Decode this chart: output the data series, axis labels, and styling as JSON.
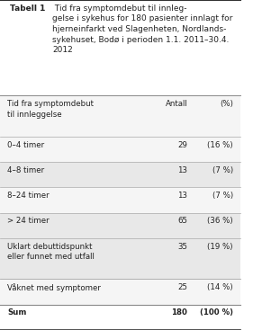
{
  "title_bold": "Tabell 1",
  "title_rest": " Tid fra symptomdebut til innleg-\ngelse i sykehus for 180 pasienter innlagt for\nhjerneinfarkt ved Slagenheten, Nordlands-\nsykehuset, Bodø i perioden 1.1. 2011–30.4.\n2012",
  "col_header": [
    "Tid fra symptomdebut\ntil innleggelse",
    "Antall",
    "(%)"
  ],
  "rows": [
    [
      "0–4 timer",
      "29",
      "(16 %)"
    ],
    [
      "4–8 timer",
      "13",
      "(7 %)"
    ],
    [
      "8–24 timer",
      "13",
      "(7 %)"
    ],
    [
      "> 24 timer",
      "65",
      "(36 %)"
    ],
    [
      "Uklart debuttidspunkt\neller funnet med utfall",
      "35",
      "(19 %)"
    ],
    [
      "Våknet med symptomer",
      "25",
      "(14 %)"
    ],
    [
      "Sum",
      "180",
      "(100 %)"
    ]
  ],
  "bg_color_odd": "#e8e8e8",
  "bg_color_even": "#f5f5f5",
  "bg_color_sum": "#ffffff",
  "border_color": "#aaaaaa",
  "text_color": "#222222",
  "title_bg": "#ffffff",
  "fig_bg": "#ffffff"
}
